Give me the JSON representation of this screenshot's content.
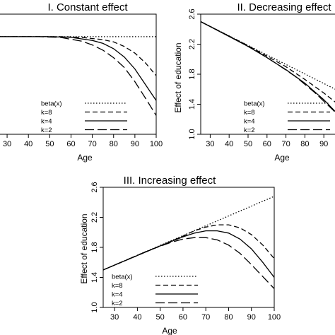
{
  "chart_data": [
    {
      "type": "line",
      "title": "I. Constant effect",
      "xlabel": "Age",
      "ylabel": "",
      "xticks": [
        30,
        40,
        50,
        60,
        70,
        80,
        90,
        100
      ],
      "yticks": [],
      "xlim": [
        25,
        100
      ],
      "ylim": [
        1.0,
        2.6
      ],
      "legend": "bottom-left",
      "series": [
        {
          "name": "beta(x)",
          "dash": "dotted",
          "x": [
            25,
            50,
            75,
            100
          ],
          "y": [
            2.3,
            2.3,
            2.3,
            2.3
          ]
        },
        {
          "name": "k=8",
          "dash": "short-dash",
          "x": [
            25,
            55,
            65,
            75,
            80,
            85,
            90,
            95,
            100
          ],
          "y": [
            2.3,
            2.3,
            2.29,
            2.26,
            2.23,
            2.17,
            2.08,
            1.95,
            1.78
          ]
        },
        {
          "name": "k=4",
          "dash": "solid",
          "x": [
            25,
            50,
            60,
            70,
            75,
            80,
            85,
            90,
            95,
            100
          ],
          "y": [
            2.3,
            2.3,
            2.29,
            2.25,
            2.21,
            2.14,
            2.03,
            1.87,
            1.66,
            1.45
          ]
        },
        {
          "name": "k=2",
          "dash": "long-dash",
          "x": [
            25,
            45,
            55,
            65,
            70,
            75,
            80,
            85,
            90,
            95,
            100
          ],
          "y": [
            2.3,
            2.3,
            2.29,
            2.24,
            2.19,
            2.12,
            2.02,
            1.89,
            1.7,
            1.48,
            1.25
          ]
        }
      ]
    },
    {
      "type": "line",
      "title": "II. Decreasing effect",
      "xlabel": "Age",
      "ylabel": "Effect of education",
      "xticks": [
        30,
        40,
        50,
        60,
        70,
        80,
        90
      ],
      "yticks": [
        "1.0",
        "1.4",
        "1.8",
        "2.2",
        "2.6"
      ],
      "xlim": [
        25,
        100
      ],
      "ylim": [
        1.0,
        2.6
      ],
      "legend": "bottom-left",
      "series": [
        {
          "name": "beta(x)",
          "dash": "dotted",
          "x": [
            25,
            100
          ],
          "y": [
            2.5,
            1.55
          ]
        },
        {
          "name": "k=8",
          "dash": "short-dash",
          "x": [
            25,
            50,
            60,
            70,
            80,
            90,
            100
          ],
          "y": [
            2.5,
            2.18,
            2.04,
            1.9,
            1.73,
            1.55,
            1.35
          ]
        },
        {
          "name": "k=4",
          "dash": "solid",
          "x": [
            25,
            50,
            60,
            70,
            80,
            90,
            100
          ],
          "y": [
            2.5,
            2.17,
            2.02,
            1.86,
            1.68,
            1.46,
            1.2
          ]
        },
        {
          "name": "k=2",
          "dash": "long-dash",
          "x": [
            25,
            45,
            55,
            65,
            75,
            85,
            95,
            100
          ],
          "y": [
            2.5,
            2.24,
            2.1,
            1.94,
            1.77,
            1.56,
            1.32,
            1.16
          ]
        }
      ]
    },
    {
      "type": "line",
      "title": "III. Increasing effect",
      "xlabel": "Age",
      "ylabel": "Effect of education",
      "xticks": [
        30,
        40,
        50,
        60,
        70,
        80,
        90,
        100
      ],
      "yticks": [
        "1.0",
        "1.4",
        "1.8",
        "2.2",
        "2.6"
      ],
      "xlim": [
        25,
        100
      ],
      "ylim": [
        1.0,
        2.6
      ],
      "legend": "bottom-left",
      "series": [
        {
          "name": "beta(x)",
          "dash": "dotted",
          "x": [
            25,
            100
          ],
          "y": [
            1.5,
            2.48
          ]
        },
        {
          "name": "k=8",
          "dash": "short-dash",
          "x": [
            25,
            50,
            60,
            65,
            70,
            75,
            80,
            85,
            90,
            95,
            100
          ],
          "y": [
            1.5,
            1.82,
            1.95,
            2.02,
            2.07,
            2.1,
            2.1,
            2.06,
            1.97,
            1.83,
            1.65
          ]
        },
        {
          "name": "k=4",
          "dash": "solid",
          "x": [
            25,
            50,
            60,
            65,
            70,
            75,
            80,
            85,
            90,
            95,
            100
          ],
          "y": [
            1.5,
            1.82,
            1.94,
            1.99,
            2.02,
            2.02,
            1.99,
            1.91,
            1.78,
            1.6,
            1.4
          ]
        },
        {
          "name": "k=2",
          "dash": "long-dash",
          "x": [
            25,
            45,
            55,
            60,
            65,
            70,
            75,
            80,
            85,
            90,
            95,
            100
          ],
          "y": [
            1.5,
            1.76,
            1.87,
            1.91,
            1.93,
            1.93,
            1.9,
            1.83,
            1.72,
            1.57,
            1.41,
            1.25
          ]
        }
      ]
    }
  ]
}
